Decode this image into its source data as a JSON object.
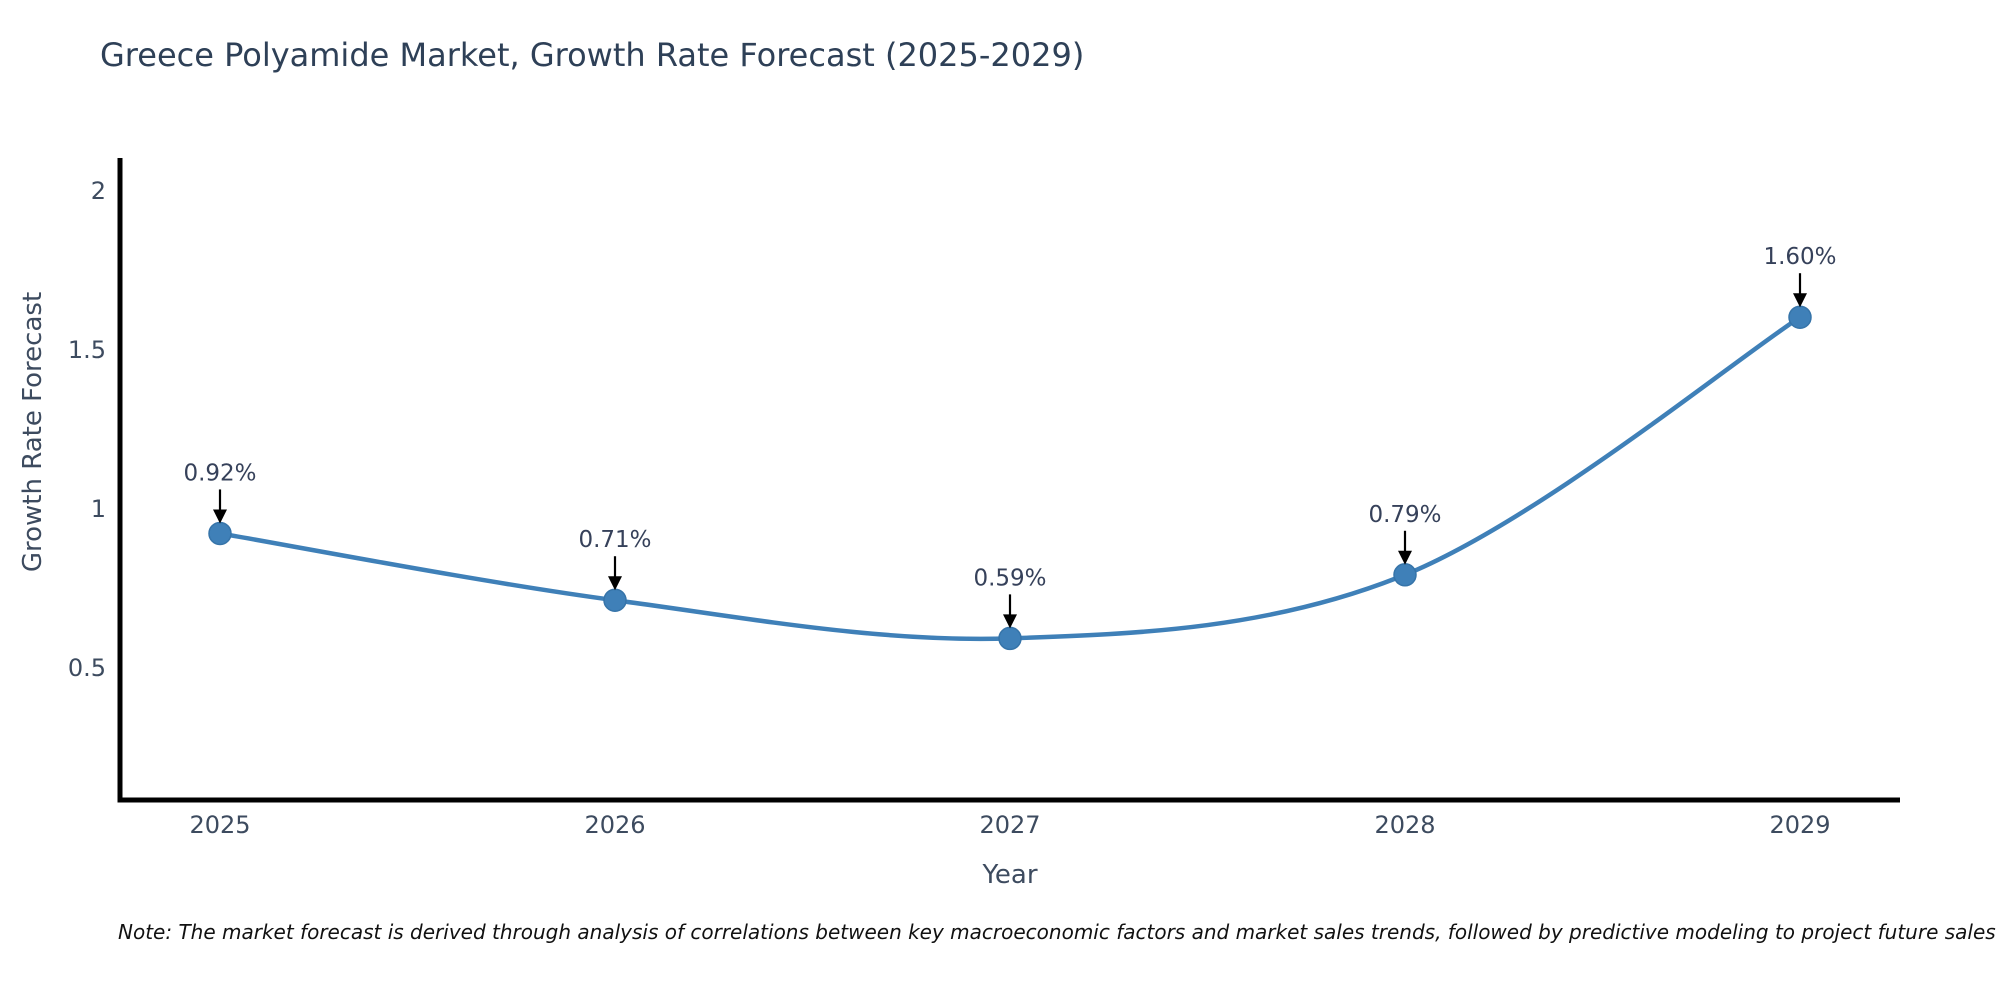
{
  "title": "Greece Polyamide Market, Growth Rate Forecast (2025-2029)",
  "note": "Note: The market forecast is derived through analysis of correlations between key macroeconomic factors and market sales trends, followed by predictive modeling to project future sales",
  "chart_data": {
    "type": "line",
    "title": "Greece Polyamide Market, Growth Rate Forecast (2025-2029)",
    "xlabel": "Year",
    "ylabel": "Growth Rate Forecast",
    "categories": [
      "2025",
      "2026",
      "2027",
      "2028",
      "2029"
    ],
    "series": [
      {
        "name": "Growth Rate Forecast",
        "values": [
          0.92,
          0.71,
          0.59,
          0.79,
          1.6
        ]
      }
    ],
    "point_labels": [
      "0.92%",
      "0.71%",
      "0.59%",
      "0.79%",
      "1.60%"
    ],
    "ytick_labels": [
      "0.5",
      "1",
      "1.5",
      "2"
    ],
    "yticks": [
      0.5,
      1,
      1.5,
      2
    ],
    "ylim": [
      0.08,
      2.1
    ],
    "line_shape": "spline",
    "grid": false,
    "legend": "none",
    "colors": {
      "line": "#3f80b8",
      "marker": "#3f80b8",
      "marker_edge": "#3674a9",
      "axis": "#000000",
      "tick_text": "#3d4b5f",
      "label_text": "#36415a",
      "title_text": "#2e4057",
      "arrow": "#000000"
    }
  }
}
